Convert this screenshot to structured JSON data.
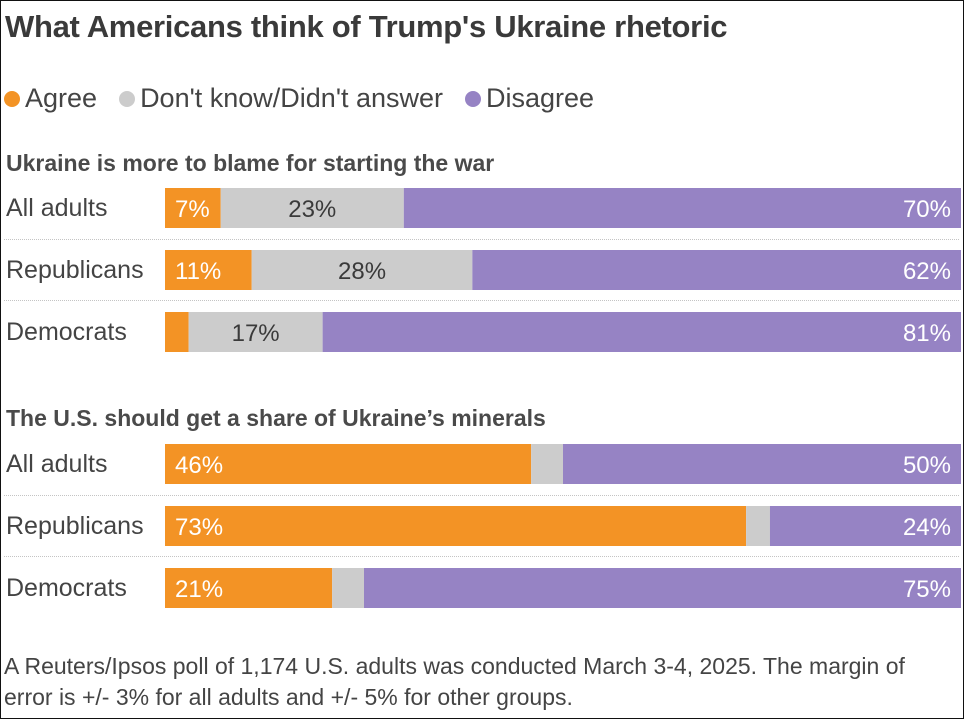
{
  "title": "What Americans think of Trump's Ukraine rhetoric",
  "legend": [
    {
      "label": "Agree",
      "color": "#f39325"
    },
    {
      "label": "Don't know/Didn't answer",
      "color": "#cccccc"
    },
    {
      "label": "Disagree",
      "color": "#9683c4"
    }
  ],
  "note": "A Reuters/Ipsos poll of 1,174 U.S. adults was conducted March 3-4, 2025. The margin of error is +/- 3% for all adults and +/- 5% for other groups.",
  "chart_data": [
    {
      "type": "bar",
      "stacked": true,
      "orientation": "horizontal",
      "title": "Ukraine is more to blame for starting the war",
      "categories": [
        "All adults",
        "Republicans",
        "Democrats"
      ],
      "series": [
        {
          "name": "Agree",
          "values": [
            7,
            11,
            3
          ],
          "labels": [
            "7%",
            "11%",
            ""
          ]
        },
        {
          "name": "Don't know/Didn't answer",
          "values": [
            23,
            28,
            17
          ],
          "labels": [
            "23%",
            "28%",
            "17%"
          ]
        },
        {
          "name": "Disagree",
          "values": [
            70,
            62,
            81
          ],
          "labels": [
            "70%",
            "62%",
            "81%"
          ]
        }
      ]
    },
    {
      "type": "bar",
      "stacked": true,
      "orientation": "horizontal",
      "title": "The U.S. should get a share of Ukraine’s minerals",
      "categories": [
        "All adults",
        "Republicans",
        "Democrats"
      ],
      "series": [
        {
          "name": "Agree",
          "values": [
            46,
            73,
            21
          ],
          "labels": [
            "46%",
            "73%",
            "21%"
          ]
        },
        {
          "name": "Don't know/Didn't answer",
          "values": [
            4,
            3,
            4
          ],
          "labels": [
            "",
            "",
            ""
          ]
        },
        {
          "name": "Disagree",
          "values": [
            50,
            24,
            75
          ],
          "labels": [
            "50%",
            "24%",
            "75%"
          ]
        }
      ]
    }
  ]
}
